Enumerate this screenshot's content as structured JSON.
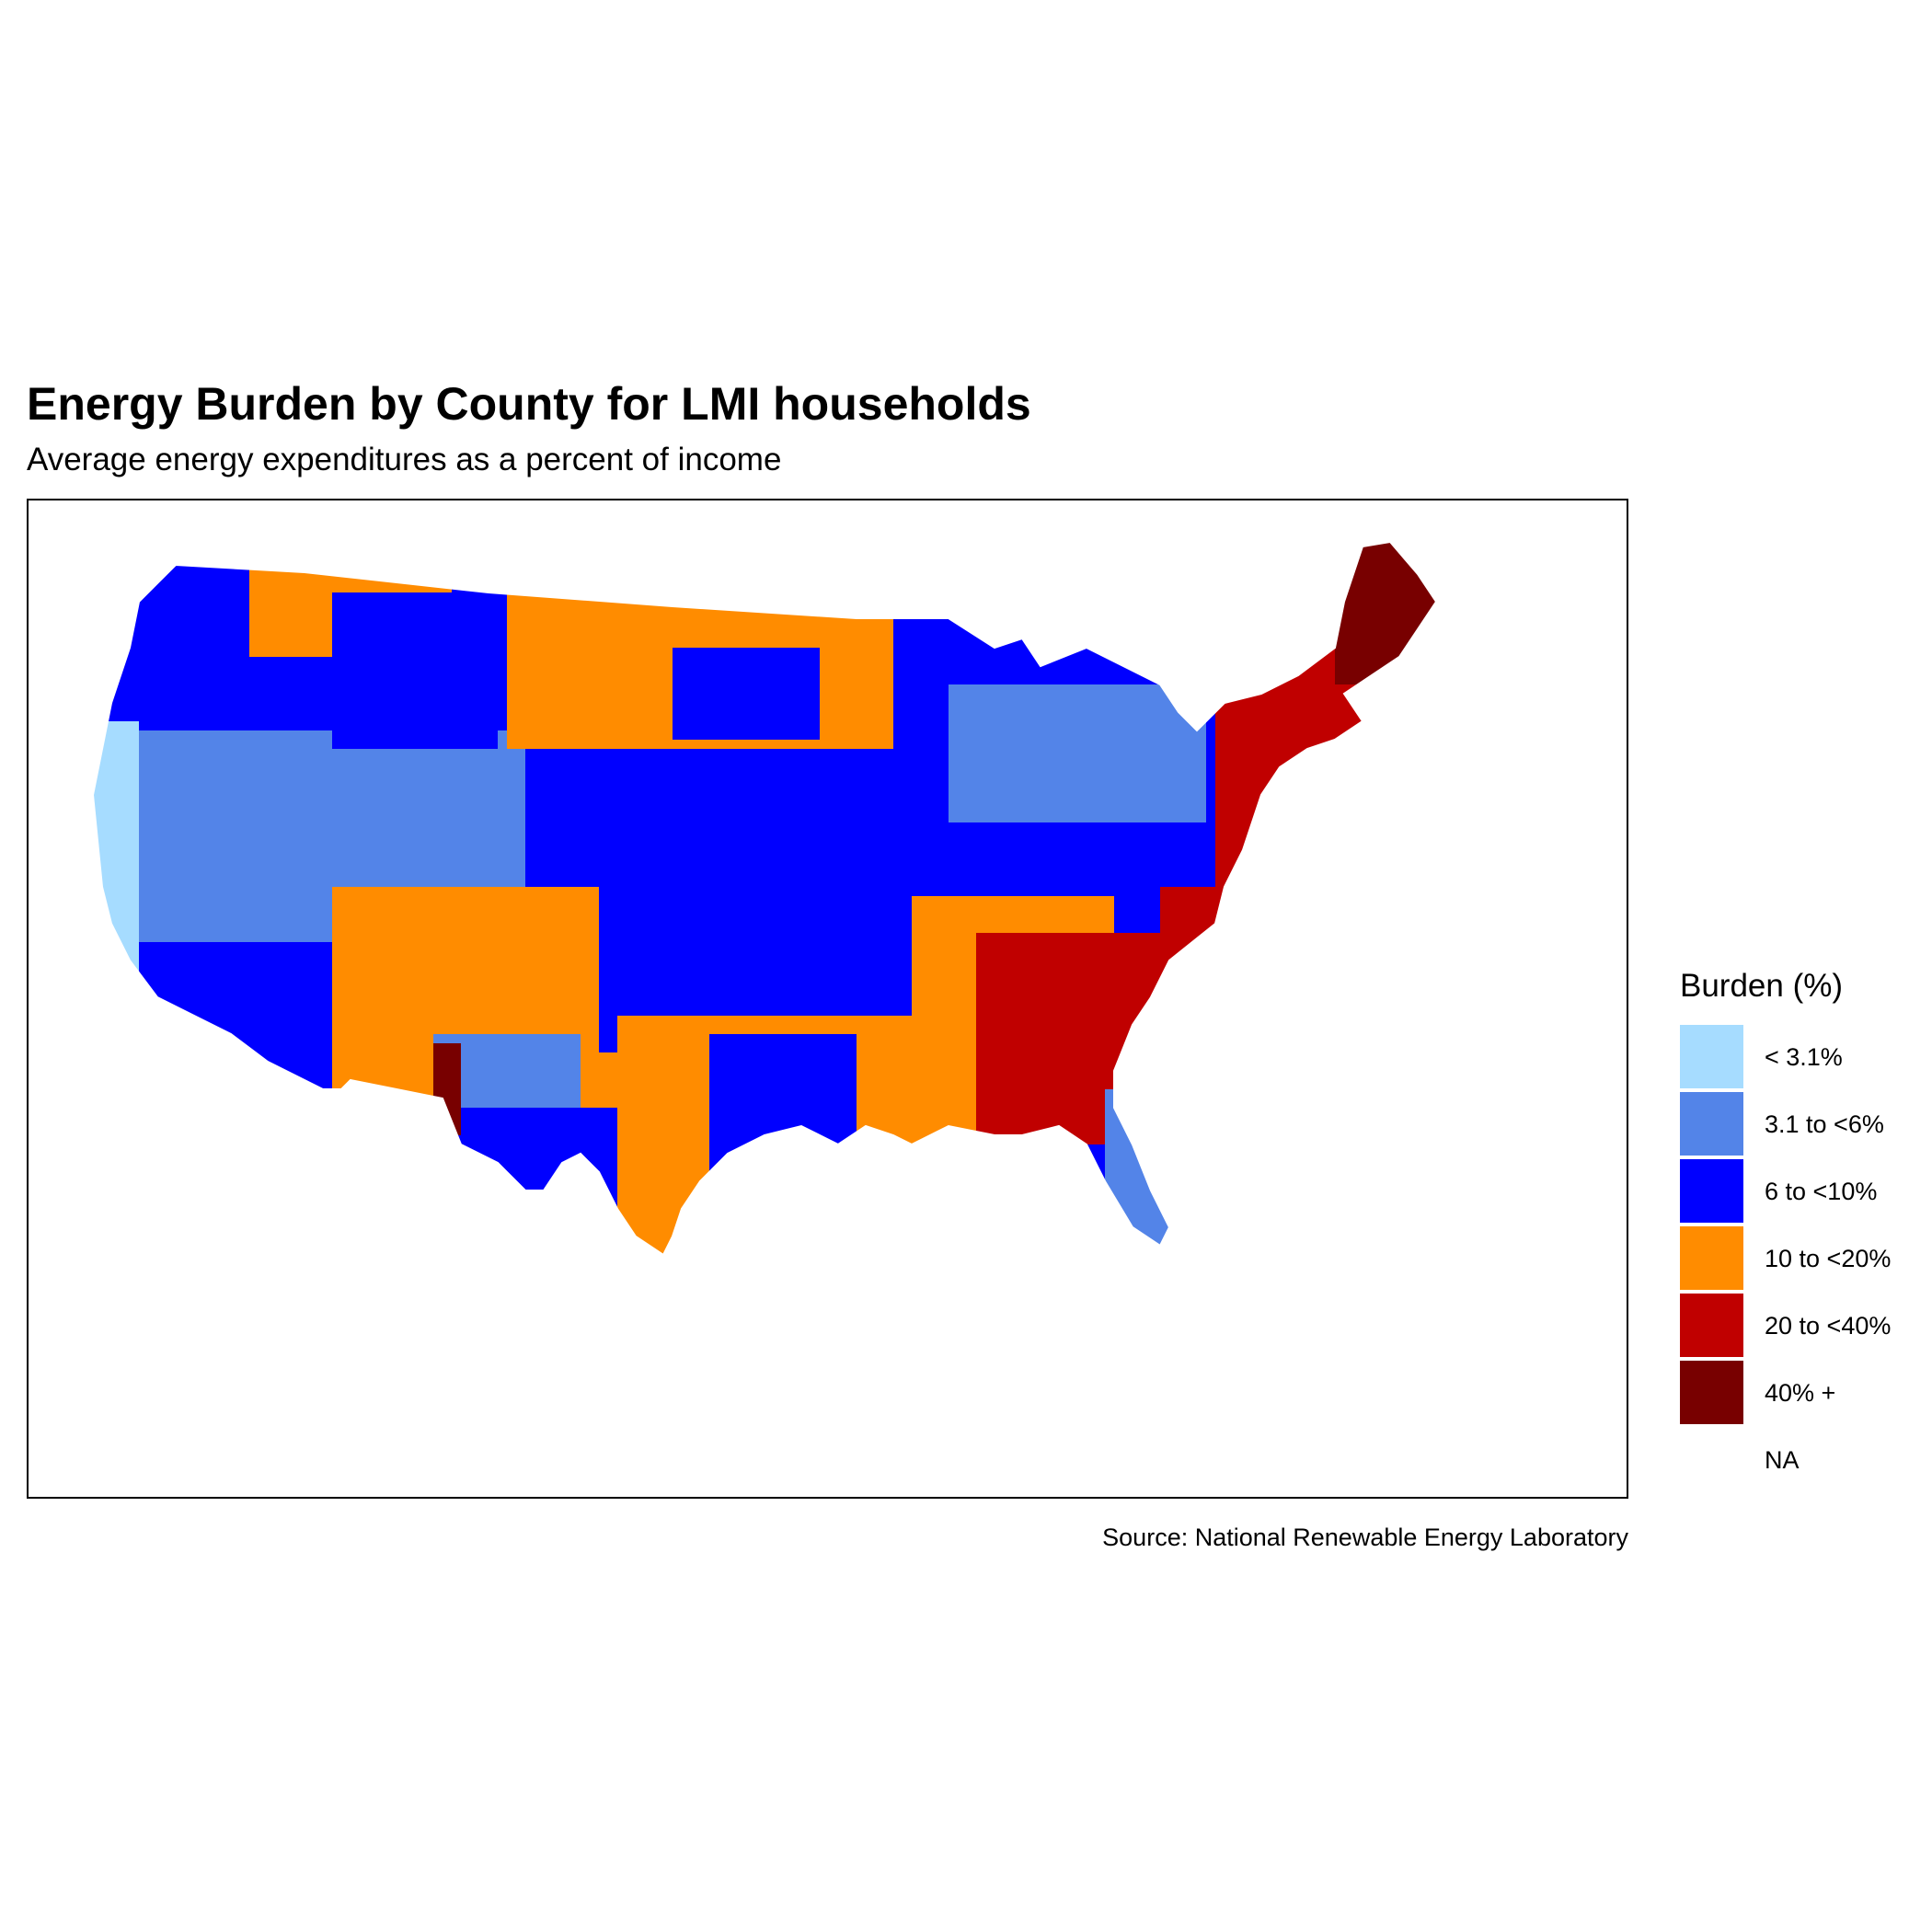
{
  "title": "Energy Burden by County for LMI households",
  "subtitle": "Average energy expenditures as a percent of income",
  "caption": "Source: National Renewable Energy Laboratory",
  "legend": {
    "title": "Burden (%)",
    "items": [
      {
        "label": "< 3.1%",
        "color": "#a6dcff"
      },
      {
        "label": "3.1 to <6%",
        "color": "#5384e8"
      },
      {
        "label": "6 to <10%",
        "color": "#0000ff"
      },
      {
        "label": "10 to <20%",
        "color": "#ff8c00"
      },
      {
        "label": "20 to <40%",
        "color": "#c00000"
      },
      {
        "label": "40% +",
        "color": "#780000"
      },
      {
        "label": "NA",
        "color": "#ffffff"
      }
    ]
  },
  "region_colors": {
    "pacific_northwest": "#0000ff",
    "pacific_coast": "#a6dcff",
    "great_basin": "#5384e8",
    "mountain_north": "#0000ff",
    "southwest": "#ff8c00",
    "northern_plains": "#ff8c00",
    "central_plains": "#0000ff",
    "texas": "#ff8c00",
    "midwest": "#0000ff",
    "great_lakes": "#5384e8",
    "south": "#c00000",
    "deep_south": "#c00000",
    "florida": "#5384e8",
    "northeast": "#c00000",
    "maine": "#780000",
    "new_mexico": "#780000"
  }
}
